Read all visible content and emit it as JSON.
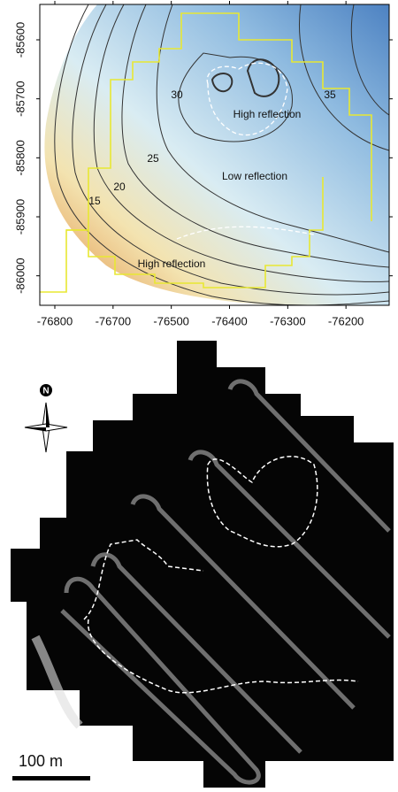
{
  "top_panel": {
    "xticks": [
      -76800,
      -76700,
      -76500,
      -76400,
      -76300,
      -76200
    ],
    "yticks": [
      -85600,
      -85700,
      -85800,
      -85900,
      -86000
    ],
    "ylim": [
      -85540,
      -86050
    ],
    "contour_labels": [
      "30",
      "35",
      "25",
      "20",
      "15"
    ],
    "annotations": [
      "High reflection",
      "Low reflection",
      "High reflection"
    ]
  },
  "bottom_panel": {
    "north_label": "N",
    "scale_label": "100 m"
  }
}
